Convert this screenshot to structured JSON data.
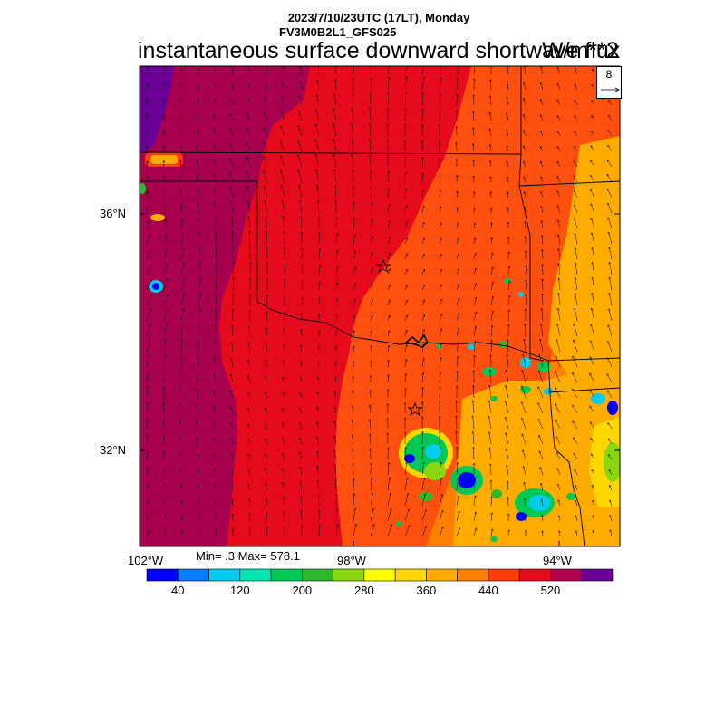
{
  "header": {
    "datetime": "2023/7/10/23UTC (17LT), Monday",
    "model": "FV3M0B2L1_GFS025",
    "title": "instantaneous surface downward shortwave flux",
    "units": "W/m**2"
  },
  "map": {
    "lat_labels": [
      "36°N",
      "32°N"
    ],
    "lon_labels": [
      "102°W",
      "98°W",
      "94°W"
    ],
    "stats": "Min= .3 Max= 578.1",
    "wind_reference": "8",
    "markers": [
      "star-marker",
      "star-marker"
    ]
  },
  "colorbar": {
    "labels": [
      "40",
      "120",
      "200",
      "280",
      "360",
      "440",
      "520"
    ],
    "colors": [
      "#0000ff",
      "#0a7cff",
      "#00ccee",
      "#00e6b3",
      "#00c853",
      "#2db82d",
      "#8ad610",
      "#ffff00",
      "#ffd700",
      "#ffab00",
      "#ff7f00",
      "#ff3c0a",
      "#e60b1c",
      "#b0004e",
      "#6a0096"
    ]
  }
}
